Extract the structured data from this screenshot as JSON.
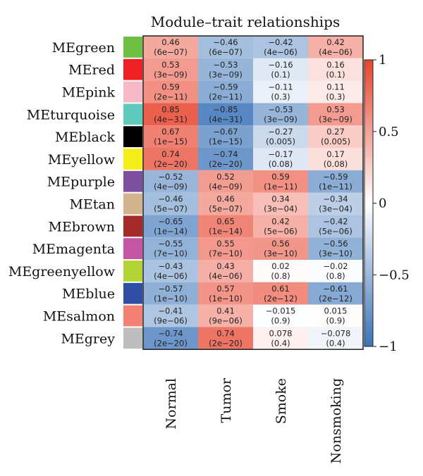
{
  "chart_data": {
    "type": "heatmap",
    "title": "Module–trait relationships",
    "rows": [
      "MEgreen",
      "MEred",
      "MEpink",
      "MEturquoise",
      "MEblack",
      "MEyellow",
      "MEpurple",
      "MEtan",
      "MEbrown",
      "MEmagenta",
      "MEgreenyellow",
      "MEblue",
      "MEsalmon",
      "MEgrey"
    ],
    "row_colors": [
      "#6fbf44",
      "#ee2024",
      "#f7b8c8",
      "#5fcbbd",
      "#000000",
      "#f5ee1b",
      "#7e4f9e",
      "#d2b48c",
      "#a52a2a",
      "#c556a6",
      "#b4d334",
      "#2e4fa3",
      "#f48072",
      "#bebebe"
    ],
    "columns": [
      "Normal",
      "Tumor",
      "Smoke",
      "Nonsmoking"
    ],
    "values": [
      [
        0.46,
        -0.46,
        -0.42,
        0.42
      ],
      [
        0.53,
        -0.53,
        -0.16,
        0.16
      ],
      [
        0.59,
        -0.59,
        -0.11,
        0.11
      ],
      [
        0.85,
        -0.85,
        -0.53,
        0.53
      ],
      [
        0.67,
        -0.67,
        -0.27,
        0.27
      ],
      [
        0.74,
        -0.74,
        -0.17,
        0.17
      ],
      [
        -0.52,
        0.52,
        0.59,
        -0.59
      ],
      [
        -0.46,
        0.46,
        0.34,
        -0.34
      ],
      [
        -0.65,
        0.65,
        0.42,
        -0.42
      ],
      [
        -0.55,
        0.55,
        0.56,
        -0.56
      ],
      [
        -0.43,
        0.43,
        0.02,
        -0.02
      ],
      [
        -0.57,
        0.57,
        0.61,
        -0.61
      ],
      [
        -0.41,
        0.41,
        -0.015,
        0.015
      ],
      [
        -0.74,
        0.74,
        0.078,
        -0.078
      ]
    ],
    "cell_labels": [
      [
        "0.46",
        "-0.46",
        "-0.42",
        "0.42"
      ],
      [
        "0.53",
        "-0.53",
        "-0.16",
        "0.16"
      ],
      [
        "0.59",
        "-0.59",
        "-0.11",
        "0.11"
      ],
      [
        "0.85",
        "-0.85",
        "-0.53",
        "0.53"
      ],
      [
        "0.67",
        "-0.67",
        "-0.27",
        "0.27"
      ],
      [
        "0.74",
        "-0.74",
        "-0.17",
        "0.17"
      ],
      [
        "-0.52",
        "0.52",
        "0.59",
        "-0.59"
      ],
      [
        "-0.46",
        "0.46",
        "0.34",
        "-0.34"
      ],
      [
        "-0.65",
        "0.65",
        "0.42",
        "-0.42"
      ],
      [
        "-0.55",
        "0.55",
        "0.56",
        "-0.56"
      ],
      [
        "-0.43",
        "0.43",
        "0.02",
        "-0.02"
      ],
      [
        "-0.57",
        "0.57",
        "0.61",
        "-0.61"
      ],
      [
        "-0.41",
        "0.41",
        "-0.015",
        "0.015"
      ],
      [
        "-0.74",
        "0.74",
        "0.078",
        "-0.078"
      ]
    ],
    "pvalues": [
      [
        "(6e-07)",
        "(6e-07)",
        "(4e-06)",
        "(4e-06)"
      ],
      [
        "(3e-09)",
        "(3e-09)",
        "(0.1)",
        "(0.1)"
      ],
      [
        "(2e-11)",
        "(2e-11)",
        "(0.3)",
        "(0.3)"
      ],
      [
        "(4e-31)",
        "(4e-31)",
        "(3e-09)",
        "(3e-09)"
      ],
      [
        "(1e-15)",
        "(1e-15)",
        "(0.005)",
        "(0.005)"
      ],
      [
        "(2e-20)",
        "(2e-20)",
        "(0.08)",
        "(0.08)"
      ],
      [
        "(4e-09)",
        "(4e-09)",
        "(1e-11)",
        "(1e-11)"
      ],
      [
        "(5e-07)",
        "(5e-07)",
        "(3e-04)",
        "(3e-04)"
      ],
      [
        "(1e-14)",
        "(1e-14)",
        "(5e-06)",
        "(5e-06)"
      ],
      [
        "(7e-10)",
        "(7e-10)",
        "(3e-10)",
        "(3e-10)"
      ],
      [
        "(4e-06)",
        "(4e-06)",
        "(0.8)",
        "(0.8)"
      ],
      [
        "(1e-10)",
        "(1e-10)",
        "(2e-12)",
        "(2e-12)"
      ],
      [
        "(9e-06)",
        "(9e-06)",
        "(0.9)",
        "(0.9)"
      ],
      [
        "(2e-20)",
        "(2e-20)",
        "(0.4)",
        "(0.4)"
      ]
    ],
    "colorbar": {
      "range": [
        -1,
        1
      ],
      "ticks": [
        1,
        0.5,
        0,
        -0.5,
        -1
      ],
      "tick_labels": [
        "1",
        "0.5",
        "0",
        "−0.5",
        "−1"
      ],
      "low_color": "#3a73b8",
      "mid_color": "#ffffff",
      "high_color": "#e8432d"
    }
  }
}
